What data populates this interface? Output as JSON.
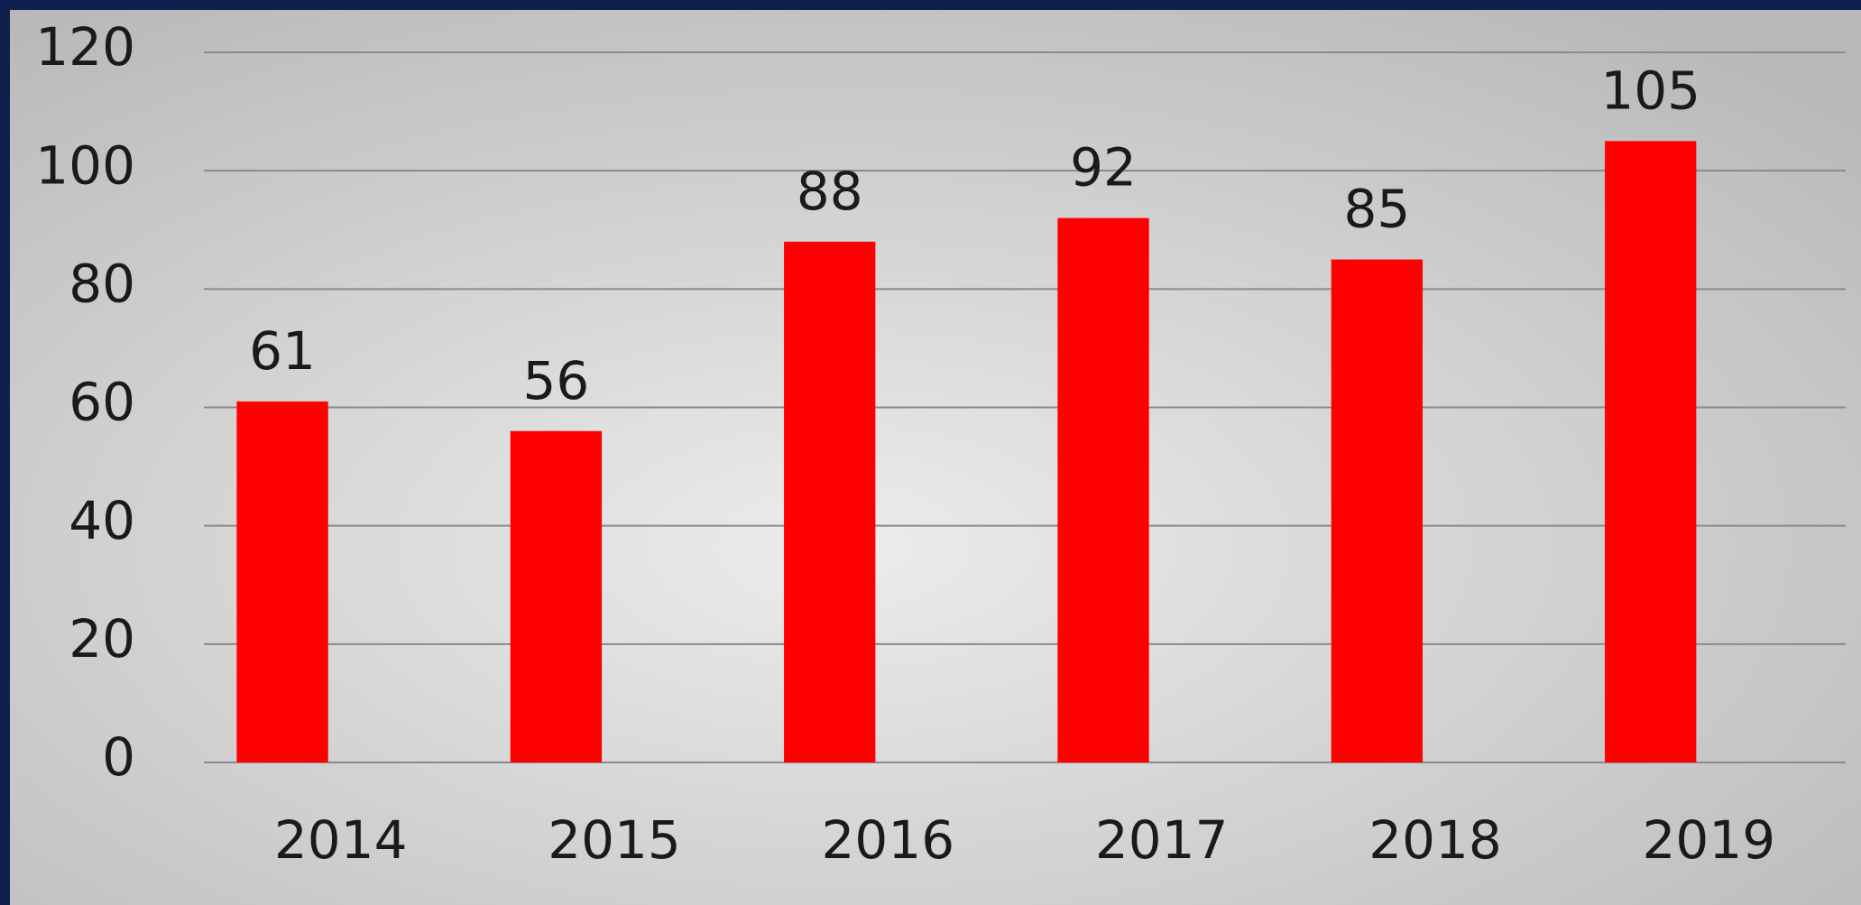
{
  "chart_data": {
    "type": "bar",
    "categories": [
      "2014",
      "2015",
      "2016",
      "2017",
      "2018",
      "2019"
    ],
    "values": [
      61,
      56,
      88,
      92,
      85,
      105
    ],
    "color": "#ff0000",
    "ylim": [
      0,
      120
    ],
    "yticks": [
      0,
      20,
      40,
      60,
      80,
      100,
      120
    ],
    "grid": true
  }
}
